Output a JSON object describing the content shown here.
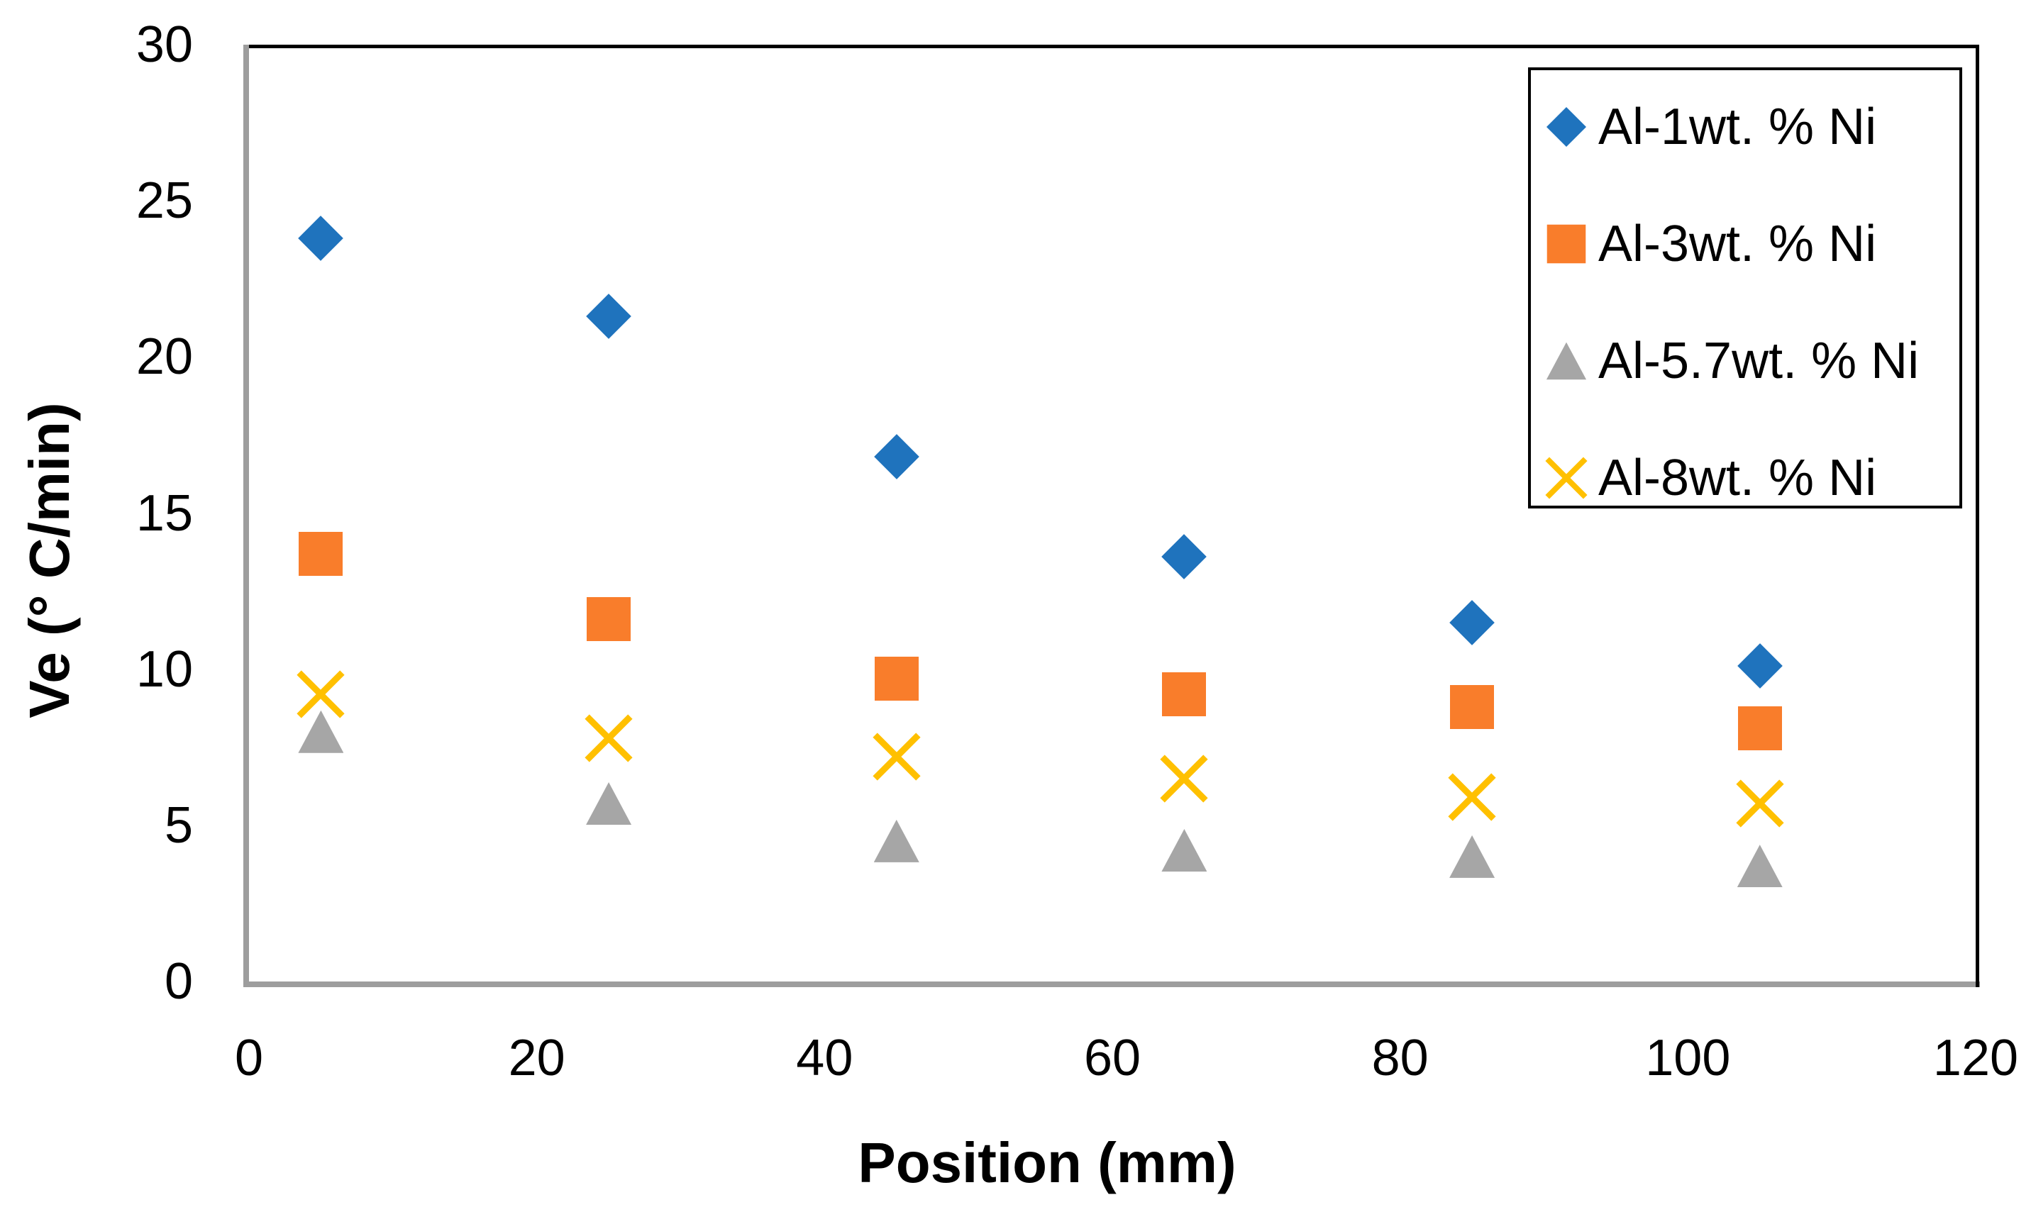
{
  "chart_data": {
    "type": "scatter",
    "title": "",
    "xlabel": "Position (mm)",
    "ylabel": "Ve (° C/min)",
    "xlim": [
      0,
      120
    ],
    "ylim": [
      0,
      30
    ],
    "x_ticks": [
      0,
      20,
      40,
      60,
      80,
      100,
      120
    ],
    "y_ticks": [
      0,
      5,
      10,
      15,
      20,
      25,
      30
    ],
    "grid": false,
    "legend_position": "inside-top-right",
    "x": [
      5,
      25,
      45,
      65,
      85,
      105
    ],
    "series": [
      {
        "name": "Al-1wt. % Ni",
        "marker": "diamond",
        "color": "#1F73BD",
        "values": [
          23.8,
          21.3,
          16.8,
          13.6,
          11.5,
          10.1
        ]
      },
      {
        "name": "Al-3wt. % Ni",
        "marker": "square",
        "color": "#F97D2B",
        "values": [
          13.7,
          11.6,
          9.7,
          9.2,
          8.8,
          8.1
        ]
      },
      {
        "name": "Al-5.7wt. % Ni",
        "marker": "triangle",
        "color": "#A6A6A6",
        "values": [
          8.0,
          5.7,
          4.5,
          4.2,
          4.0,
          3.7
        ]
      },
      {
        "name": "Al-8wt. % Ni",
        "marker": "x",
        "color": "#FFC000",
        "values": [
          9.2,
          7.8,
          7.2,
          6.5,
          5.9,
          5.7
        ]
      }
    ]
  },
  "colors": {
    "axis_line": "#9D9D9D",
    "plot_border": "#000000",
    "background": "#FFFFFF"
  }
}
